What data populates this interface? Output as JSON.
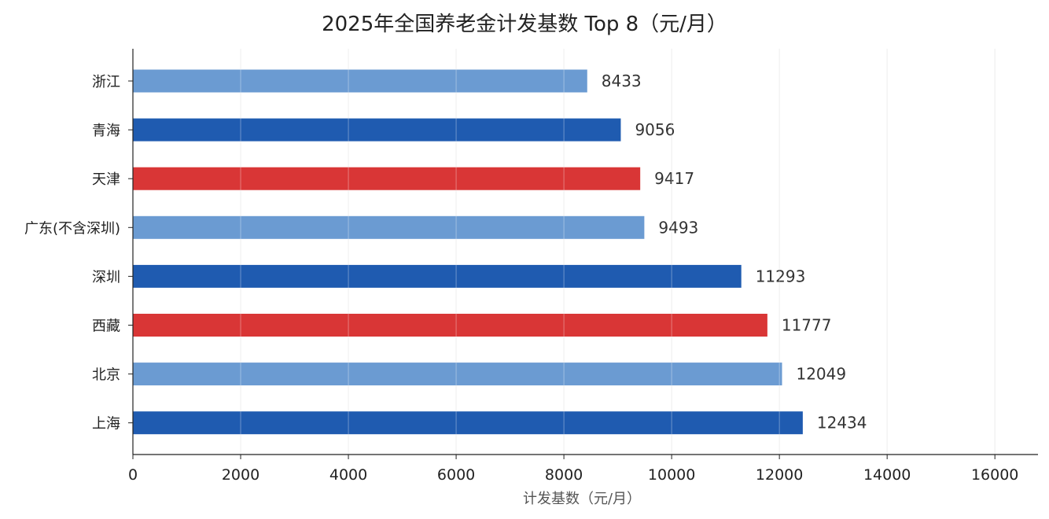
{
  "chart_data": {
    "type": "bar",
    "orientation": "horizontal",
    "title": "2025年全国养老金计发基数 Top 8（元/月）",
    "xlabel": "计发基数（元/月）",
    "ylabel": "",
    "categories": [
      "浙江",
      "青海",
      "天津",
      "广东(不含深圳)",
      "深圳",
      "西藏",
      "北京",
      "上海"
    ],
    "values": [
      8433,
      9056,
      9417,
      9493,
      11293,
      11777,
      12049,
      12434
    ],
    "bar_colors": [
      "#6b9bd2",
      "#1f5bb0",
      "#d93636",
      "#6b9bd2",
      "#1f5bb0",
      "#d93636",
      "#6b9bd2",
      "#1f5bb0"
    ],
    "xlim": [
      0,
      16800
    ],
    "xticks": [
      0,
      2000,
      4000,
      6000,
      8000,
      10000,
      12000,
      14000,
      16000
    ],
    "grid": true,
    "data_labels": true
  }
}
